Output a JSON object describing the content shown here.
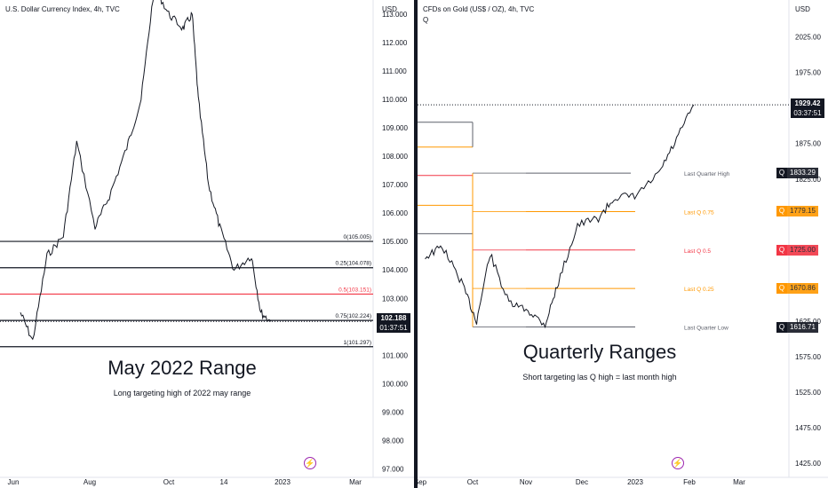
{
  "colors": {
    "price": "#131722",
    "axis_text": "#131722",
    "fib_red": "#f23645",
    "fib_orange": "#ff9800",
    "q_gray": "#5d606b",
    "badge_dark": "#131722",
    "q_badge_orange": "#ff9800",
    "q_badge_red": "#f23645",
    "divider": "#131722",
    "logo_purple": "#9c27b0"
  },
  "left_chart": {
    "title": "U.S. Dollar Currency Index, 4h, TVC",
    "currency_label": "USD",
    "annotation_title": "May 2022 Range",
    "annotation_subtitle": "Long targeting high of 2022 may range",
    "logo_icon": "tradingview-lightning-icon",
    "price_badge": {
      "price": "102.188",
      "countdown": "01:37:51"
    }
  },
  "right_chart": {
    "title": "CFDs on Gold (US$ / OZ), 4h, TVC",
    "subtitle": "Q",
    "currency_label": "USD",
    "annotation_title": "Quarterly Ranges",
    "annotation_subtitle": "Short targeting las Q high = last month high",
    "logo_icon": "tradingview-lightning-icon",
    "price_badge": {
      "price": "1929.42",
      "countdown": "03:37:51"
    },
    "level_badges": [
      {
        "tag": "Q",
        "value": "1833.29",
        "label": "Last Quarter High",
        "color": "#131722"
      },
      {
        "tag": "Q",
        "value": "1779.15",
        "label": "Last Q 0.75",
        "color": "#ff9800"
      },
      {
        "tag": "Q",
        "value": "1725.00",
        "label": "Last Q 0.5",
        "color": "#f23645"
      },
      {
        "tag": "Q",
        "value": "1670.86",
        "label": "Last Q 0.25",
        "color": "#ff9800"
      },
      {
        "tag": "Q",
        "value": "1616.71",
        "label": "Last Quarter Low",
        "color": "#131722"
      }
    ]
  },
  "chart_data": [
    {
      "type": "line",
      "title": "U.S. Dollar Currency Index, 4h, TVC",
      "ylabel": "USD",
      "ylim": [
        96.7,
        113.5
      ],
      "y_ticks": [
        "113.000",
        "112.000",
        "111.000",
        "110.000",
        "109.000",
        "108.000",
        "107.000",
        "106.000",
        "105.000",
        "104.000",
        "103.000",
        "102.000",
        "101.000",
        "100.000",
        "99.000",
        "98.000",
        "97.000"
      ],
      "x_ticks": [
        "Jun",
        "Aug",
        "Oct",
        "14",
        "2023",
        "Mar"
      ],
      "series": [
        {
          "x": [
            "May 20",
            "Jun 1",
            "Jun 15",
            "Jul 1",
            "Jul 14",
            "Aug 1",
            "Aug 15",
            "Sep 1",
            "Sep 15",
            "Sep 28",
            "Oct 12",
            "Oct 26",
            "Nov 4",
            "Nov 10",
            "Nov 20",
            "Dec 1",
            "Dec 15",
            "Jan 1",
            "Jan 10",
            "Jan 20"
          ],
          "values": [
            102.5,
            101.5,
            104.5,
            105.2,
            108.5,
            105.5,
            106.6,
            108.3,
            110.0,
            114.0,
            113.0,
            112.5,
            113.0,
            110.0,
            107.0,
            105.5,
            104.0,
            104.5,
            102.5,
            102.188
          ]
        }
      ],
      "fib_levels": [
        {
          "label": "0(105.005)",
          "value": 105.005
        },
        {
          "label": "0.25(104.078)",
          "value": 104.078
        },
        {
          "label": "0.5(103.151)",
          "value": 103.151
        },
        {
          "label": "0.75(102.224)",
          "value": 102.224
        },
        {
          "label": "1(101.297)",
          "value": 101.297
        }
      ],
      "last_price": 102.188
    },
    {
      "type": "line",
      "title": "CFDs on Gold (US$ / OZ), 4h, TVC",
      "ylabel": "USD",
      "ylim": [
        1405,
        2077
      ],
      "y_ticks": [
        "2025.00",
        "1975.00",
        "1875.00",
        "1825.00",
        "1625.00",
        "1575.00",
        "1525.00",
        "1475.00",
        "1425.00"
      ],
      "x_ticks": [
        "Sep",
        "Oct",
        "Nov",
        "Dec",
        "2023",
        "Feb",
        "Mar"
      ],
      "series": [
        {
          "x": [
            "Sep 1",
            "Sep 10",
            "Sep 20",
            "Sep 28",
            "Oct 5",
            "Oct 15",
            "Oct 25",
            "Nov 3",
            "Nov 10",
            "Nov 20",
            "Dec 1",
            "Dec 10",
            "Dec 20",
            "Jan 1",
            "Jan 10",
            "Jan 20"
          ],
          "values": [
            1715,
            1730,
            1680,
            1625,
            1720,
            1650,
            1640,
            1620,
            1680,
            1760,
            1770,
            1800,
            1800,
            1830,
            1875,
            1929.42
          ]
        }
      ],
      "levels": [
        {
          "label": "Last Quarter High",
          "value": 1833.29
        },
        {
          "label": "Last Q 0.75",
          "value": 1779.15
        },
        {
          "label": "Last Q 0.5",
          "value": 1725.0
        },
        {
          "label": "Last Q 0.25",
          "value": 1670.86
        },
        {
          "label": "Last Quarter Low",
          "value": 1616.71
        }
      ],
      "last_price": 1929.42
    }
  ]
}
